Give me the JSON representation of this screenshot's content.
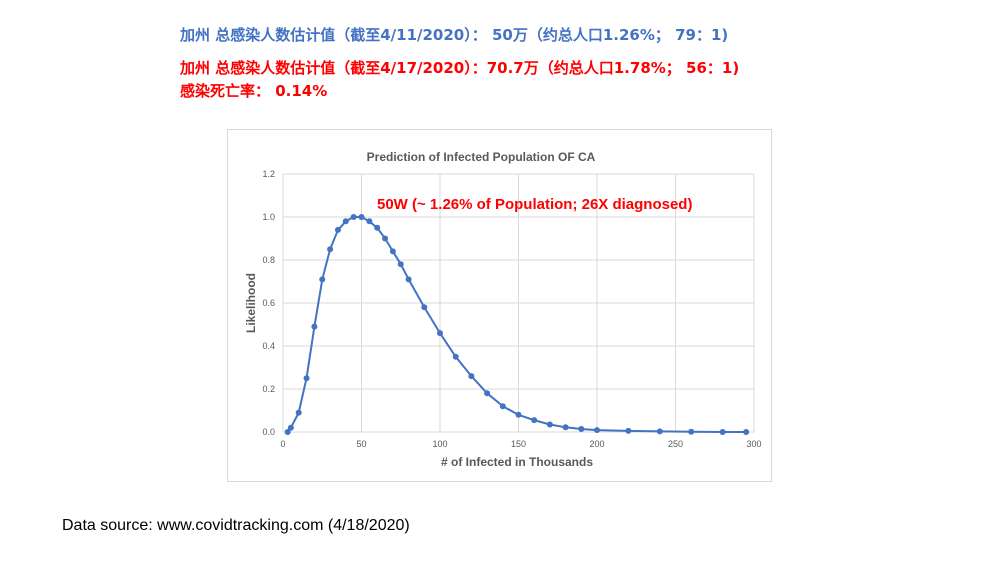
{
  "headlines": [
    {
      "text": "加州 总感染人数估计值（截至4/11/2020）： 50万（约总人口1.26%； 79：1)",
      "color": "#4472C4"
    },
    {
      "text": "加州 总感染人数估计值（截至4/17/2020）：70.7万（约总人口1.78%； 56：1)",
      "color": "#FF0000"
    },
    {
      "text": "感染死亡率： 0.14%",
      "color": "#FF0000"
    }
  ],
  "source": "Data source: www.covidtracking.com (4/18/2020)",
  "chart_data": {
    "type": "scatter",
    "title": "Prediction of Infected Population OF CA",
    "xlabel": "# of Infected in Thousands",
    "ylabel": "Likelihood",
    "xlim": [
      0,
      300
    ],
    "ylim": [
      0,
      1.2
    ],
    "xticks": [
      "0",
      "50",
      "100",
      "150",
      "200",
      "250",
      "300"
    ],
    "yticks": [
      "0.0",
      "0.2",
      "0.4",
      "0.6",
      "0.8",
      "1.0",
      "1.2"
    ],
    "grid": true,
    "annotation": "50W (~ 1.26% of Population; 26X diagnosed)",
    "annotation_color": "#FF0000",
    "series": [
      {
        "color": "#4472C4",
        "x": [
          3,
          5,
          10,
          15,
          20,
          25,
          30,
          35,
          40,
          45,
          50,
          55,
          60,
          65,
          70,
          75,
          80,
          90,
          100,
          110,
          120,
          130,
          140,
          150,
          160,
          170,
          180,
          190,
          200,
          220,
          240,
          260,
          280,
          295
        ],
        "y": [
          0.0,
          0.02,
          0.09,
          0.25,
          0.49,
          0.71,
          0.85,
          0.94,
          0.98,
          1.0,
          1.0,
          0.98,
          0.95,
          0.9,
          0.84,
          0.78,
          0.71,
          0.58,
          0.46,
          0.35,
          0.26,
          0.18,
          0.12,
          0.08,
          0.055,
          0.035,
          0.022,
          0.014,
          0.009,
          0.005,
          0.003,
          0.001,
          0.0,
          0.0
        ]
      }
    ]
  }
}
